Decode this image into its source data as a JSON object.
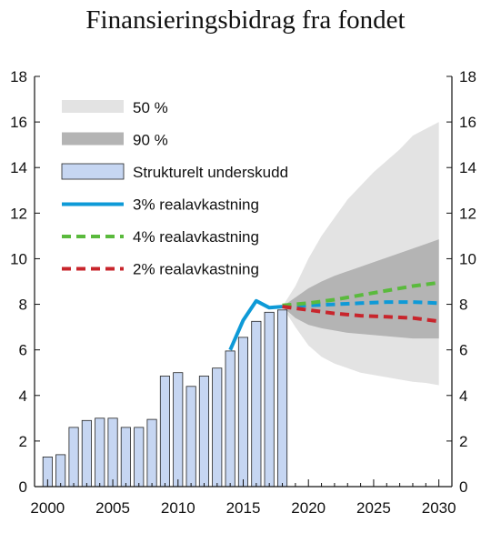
{
  "chart_data": {
    "type": "bar",
    "title": "Finansieringsbidrag fra fondet",
    "xlim": [
      1999,
      2031
    ],
    "ylim": [
      0,
      18
    ],
    "x_ticks": [
      2000,
      2005,
      2010,
      2015,
      2020,
      2025,
      2030
    ],
    "y_ticks": [
      0,
      2,
      4,
      6,
      8,
      10,
      12,
      14,
      16,
      18
    ],
    "grid": false,
    "legend_placement": "top-left",
    "bars": {
      "name": "Strukturelt underskudd",
      "color": "#c6d6f2",
      "x": [
        2000,
        2001,
        2002,
        2003,
        2004,
        2005,
        2006,
        2007,
        2008,
        2009,
        2010,
        2011,
        2012,
        2013,
        2014,
        2015,
        2016,
        2017,
        2018
      ],
      "values": [
        1.3,
        1.4,
        2.6,
        2.9,
        3.0,
        3.0,
        2.6,
        2.6,
        2.95,
        4.85,
        5.0,
        4.4,
        4.85,
        5.2,
        5.95,
        6.55,
        7.25,
        7.65,
        7.75
      ]
    },
    "bands": [
      {
        "name": "50 %",
        "color": "#e3e3e3",
        "x": [
          2018,
          2019,
          2020,
          2021,
          2022,
          2023,
          2024,
          2025,
          2026,
          2027,
          2028,
          2029,
          2030
        ],
        "upper": [
          7.9,
          8.8,
          10.0,
          11.0,
          11.8,
          12.6,
          13.2,
          13.8,
          14.3,
          14.8,
          15.4,
          15.7,
          16.0
        ],
        "lower": [
          7.9,
          7.0,
          6.2,
          5.7,
          5.4,
          5.2,
          5.0,
          4.9,
          4.8,
          4.7,
          4.6,
          4.55,
          4.45
        ]
      },
      {
        "name": "90 %",
        "color": "#b4b4b4",
        "x": [
          2018,
          2019,
          2020,
          2021,
          2022,
          2023,
          2024,
          2025,
          2026,
          2027,
          2028,
          2029,
          2030
        ],
        "upper": [
          7.9,
          8.3,
          8.7,
          9.0,
          9.25,
          9.45,
          9.65,
          9.85,
          10.05,
          10.25,
          10.45,
          10.65,
          10.85
        ],
        "lower": [
          7.9,
          7.4,
          7.1,
          6.95,
          6.85,
          6.75,
          6.7,
          6.65,
          6.6,
          6.55,
          6.5,
          6.5,
          6.5
        ]
      }
    ],
    "series": [
      {
        "name": "3% realavkastning",
        "color": "#0e9ad7",
        "x": [
          2014,
          2015,
          2016,
          2017,
          2018
        ],
        "values": [
          6.0,
          7.3,
          8.15,
          7.85,
          7.9
        ],
        "dashed": false
      },
      {
        "name": "3% realavkastning",
        "color": "#0e9ad7",
        "x": [
          2018,
          2020,
          2022,
          2024,
          2026,
          2028,
          2030
        ],
        "values": [
          7.9,
          7.95,
          8.0,
          8.05,
          8.1,
          8.1,
          8.05
        ],
        "dashed": true,
        "legend": false
      },
      {
        "name": "4% realavkastning",
        "color": "#5aba3d",
        "x": [
          2018,
          2020,
          2022,
          2024,
          2026,
          2028,
          2030
        ],
        "values": [
          7.95,
          8.05,
          8.2,
          8.4,
          8.6,
          8.8,
          8.95
        ],
        "dashed": true
      },
      {
        "name": "2% realavkastning",
        "color": "#c8252c",
        "x": [
          2018,
          2020,
          2022,
          2024,
          2026,
          2028,
          2030
        ],
        "values": [
          7.9,
          7.75,
          7.6,
          7.5,
          7.45,
          7.4,
          7.25
        ],
        "dashed": true
      }
    ],
    "legend": [
      {
        "label": "50 %",
        "kind": "band",
        "color": "#e3e3e3"
      },
      {
        "label": "90 %",
        "kind": "band",
        "color": "#b4b4b4"
      },
      {
        "label": "Strukturelt underskudd",
        "kind": "bar",
        "color": "#c6d6f2"
      },
      {
        "label": "3% realavkastning",
        "kind": "line",
        "color": "#0e9ad7",
        "dashed": false
      },
      {
        "label": "4% realavkastning",
        "kind": "line",
        "color": "#5aba3d",
        "dashed": true
      },
      {
        "label": "2% realavkastning",
        "kind": "line",
        "color": "#c8252c",
        "dashed": true
      }
    ]
  }
}
